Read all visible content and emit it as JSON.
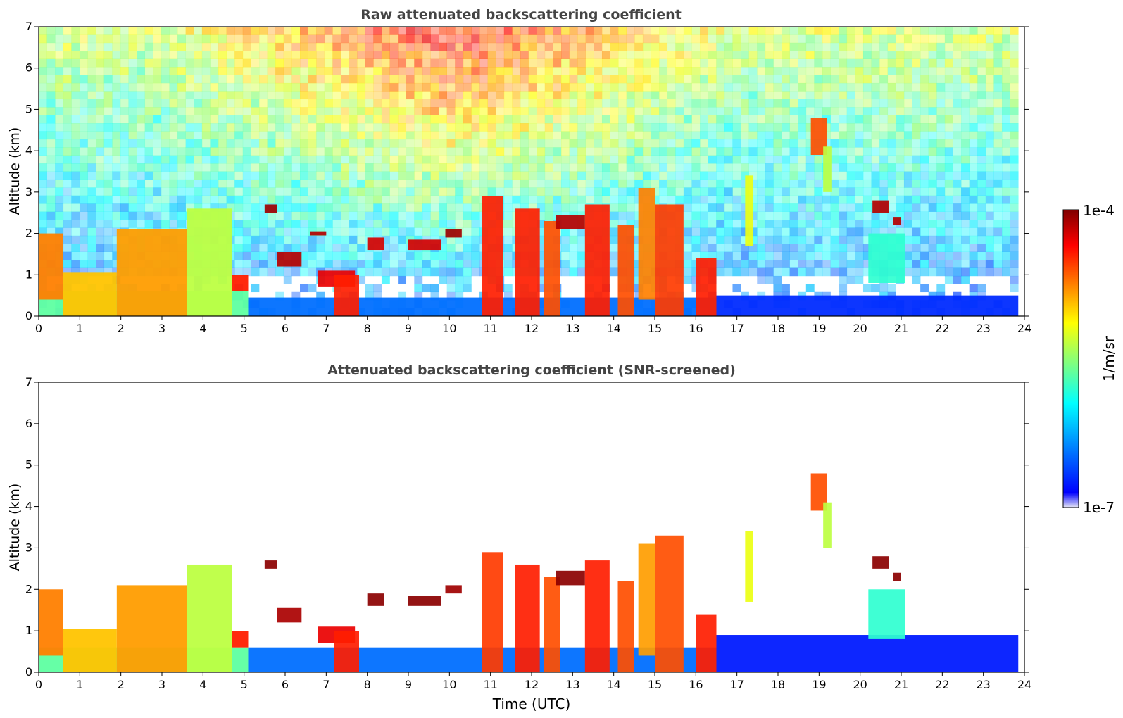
{
  "chart_data": [
    {
      "type": "heatmap",
      "title": "Raw attenuated backscattering coefficient",
      "xlabel": "",
      "ylabel": "Altitude (km)",
      "xlim": [
        0,
        24
      ],
      "ylim": [
        0,
        7
      ],
      "x_ticks": [
        "0",
        "1",
        "2",
        "3",
        "4",
        "5",
        "6",
        "7",
        "8",
        "9",
        "10",
        "11",
        "12",
        "13",
        "14",
        "15",
        "16",
        "17",
        "18",
        "19",
        "20",
        "21",
        "22",
        "23",
        "24"
      ],
      "y_ticks": [
        "0",
        "1",
        "2",
        "3",
        "4",
        "5",
        "6",
        "7"
      ],
      "data_end_time": 23.85,
      "features": [
        {
          "kind": "boundary_layer",
          "t0": 0.0,
          "t1": 5.1,
          "top": 0.6,
          "value": 0.45
        },
        {
          "kind": "boundary_layer",
          "t0": 5.1,
          "t1": 16.5,
          "top": 0.45,
          "value": 0.18
        },
        {
          "kind": "boundary_layer",
          "t0": 16.5,
          "t1": 23.85,
          "top": 0.5,
          "value": 0.1
        },
        {
          "kind": "aerosol_layer",
          "t0": 0.0,
          "t1": 0.6,
          "bottom": 0.4,
          "top": 2.0,
          "value": 0.75
        },
        {
          "kind": "aerosol_layer",
          "t0": 0.6,
          "t1": 1.9,
          "bottom": 0.0,
          "top": 1.05,
          "value": 0.68
        },
        {
          "kind": "aerosol_layer",
          "t0": 1.9,
          "t1": 3.6,
          "bottom": 0.0,
          "top": 2.1,
          "value": 0.72
        },
        {
          "kind": "aerosol_layer",
          "t0": 3.6,
          "t1": 4.7,
          "bottom": 0.0,
          "top": 2.6,
          "value": 0.55
        },
        {
          "kind": "aerosol_layer",
          "t0": 4.7,
          "t1": 5.1,
          "bottom": 0.6,
          "top": 1.0,
          "value": 0.85
        },
        {
          "kind": "cloud",
          "t0": 5.5,
          "t1": 5.8,
          "bottom": 2.5,
          "top": 2.7,
          "value": 0.97
        },
        {
          "kind": "cloud",
          "t0": 5.8,
          "t1": 6.4,
          "bottom": 1.2,
          "top": 1.55,
          "value": 0.95
        },
        {
          "kind": "cloud",
          "t0": 6.6,
          "t1": 7.0,
          "bottom": 1.95,
          "top": 2.05,
          "value": 0.95
        },
        {
          "kind": "cloud",
          "t0": 6.8,
          "t1": 7.7,
          "bottom": 0.7,
          "top": 1.1,
          "value": 0.9
        },
        {
          "kind": "cloud",
          "t0": 7.2,
          "t1": 7.8,
          "bottom": 0.0,
          "top": 1.0,
          "value": 0.85
        },
        {
          "kind": "cloud",
          "t0": 8.0,
          "t1": 8.4,
          "bottom": 1.6,
          "top": 1.9,
          "value": 0.92
        },
        {
          "kind": "cloud",
          "t0": 9.0,
          "t1": 9.8,
          "bottom": 1.6,
          "top": 1.85,
          "value": 0.92
        },
        {
          "kind": "cloud",
          "t0": 9.9,
          "t1": 10.3,
          "bottom": 1.9,
          "top": 2.1,
          "value": 0.97
        },
        {
          "kind": "cloud",
          "t0": 10.8,
          "t1": 11.3,
          "bottom": 0.0,
          "top": 2.9,
          "value": 0.85
        },
        {
          "kind": "cloud",
          "t0": 11.6,
          "t1": 12.2,
          "bottom": 0.0,
          "top": 2.6,
          "value": 0.85
        },
        {
          "kind": "cloud",
          "t0": 12.3,
          "t1": 12.7,
          "bottom": 0.0,
          "top": 2.3,
          "value": 0.8
        },
        {
          "kind": "cloud",
          "t0": 12.6,
          "t1": 13.3,
          "bottom": 2.1,
          "top": 2.45,
          "value": 0.95
        },
        {
          "kind": "cloud",
          "t0": 13.3,
          "t1": 13.9,
          "bottom": 0.0,
          "top": 2.7,
          "value": 0.85
        },
        {
          "kind": "cloud",
          "t0": 14.1,
          "t1": 14.5,
          "bottom": 0.0,
          "top": 2.2,
          "value": 0.8
        },
        {
          "kind": "cloud",
          "t0": 14.6,
          "t1": 15.0,
          "bottom": 0.4,
          "top": 3.1,
          "value": 0.75
        },
        {
          "kind": "cloud",
          "t0": 15.0,
          "t1": 15.7,
          "bottom": 0.0,
          "top": 2.7,
          "value": 0.82
        },
        {
          "kind": "cloud",
          "t0": 16.0,
          "t1": 16.5,
          "bottom": 0.0,
          "top": 1.4,
          "value": 0.85
        },
        {
          "kind": "cloud",
          "t0": 17.2,
          "t1": 17.4,
          "bottom": 1.7,
          "top": 3.4,
          "value": 0.6
        },
        {
          "kind": "cloud",
          "t0": 18.8,
          "t1": 19.2,
          "bottom": 3.9,
          "top": 4.8,
          "value": 0.8
        },
        {
          "kind": "cloud",
          "t0": 19.1,
          "t1": 19.3,
          "bottom": 3.0,
          "top": 4.1,
          "value": 0.55
        },
        {
          "kind": "cloud",
          "t0": 20.2,
          "t1": 21.1,
          "bottom": 0.8,
          "top": 2.0,
          "value": 0.4
        },
        {
          "kind": "cloud",
          "t0": 20.3,
          "t1": 20.7,
          "bottom": 2.5,
          "top": 2.8,
          "value": 0.95
        },
        {
          "kind": "cloud",
          "t0": 20.8,
          "t1": 21.0,
          "bottom": 2.2,
          "top": 2.4,
          "value": 0.95
        }
      ]
    },
    {
      "type": "heatmap",
      "title": "Attenuated backscattering coefficient (SNR-screened)",
      "xlabel": "Time (UTC)",
      "ylabel": "Altitude (km)",
      "xlim": [
        0,
        24
      ],
      "ylim": [
        0,
        7
      ],
      "x_ticks": [
        "0",
        "1",
        "2",
        "3",
        "4",
        "5",
        "6",
        "7",
        "8",
        "9",
        "10",
        "11",
        "12",
        "13",
        "14",
        "15",
        "16",
        "17",
        "18",
        "19",
        "20",
        "21",
        "22",
        "23",
        "24"
      ],
      "y_ticks": [
        "0",
        "1",
        "2",
        "3",
        "4",
        "5",
        "6",
        "7"
      ],
      "data_end_time": 23.85,
      "features": [
        {
          "kind": "boundary_layer",
          "t0": 0.0,
          "t1": 5.1,
          "top": 0.6,
          "value": 0.45
        },
        {
          "kind": "boundary_layer",
          "t0": 5.1,
          "t1": 16.5,
          "top": 0.6,
          "value": 0.18
        },
        {
          "kind": "boundary_layer",
          "t0": 16.5,
          "t1": 23.85,
          "top": 0.9,
          "value": 0.08
        },
        {
          "kind": "aerosol_layer",
          "t0": 0.0,
          "t1": 0.6,
          "bottom": 0.4,
          "top": 2.0,
          "value": 0.75
        },
        {
          "kind": "aerosol_layer",
          "t0": 0.6,
          "t1": 1.9,
          "bottom": 0.0,
          "top": 1.05,
          "value": 0.68
        },
        {
          "kind": "aerosol_layer",
          "t0": 1.9,
          "t1": 3.6,
          "bottom": 0.0,
          "top": 2.1,
          "value": 0.72
        },
        {
          "kind": "aerosol_layer",
          "t0": 3.6,
          "t1": 4.7,
          "bottom": 0.0,
          "top": 2.6,
          "value": 0.55
        },
        {
          "kind": "aerosol_layer",
          "t0": 4.7,
          "t1": 5.1,
          "bottom": 0.6,
          "top": 1.0,
          "value": 0.85
        },
        {
          "kind": "cloud",
          "t0": 5.5,
          "t1": 5.8,
          "bottom": 2.5,
          "top": 2.7,
          "value": 0.99
        },
        {
          "kind": "cloud",
          "t0": 5.8,
          "t1": 6.4,
          "bottom": 1.2,
          "top": 1.55,
          "value": 0.96
        },
        {
          "kind": "cloud",
          "t0": 6.8,
          "t1": 7.7,
          "bottom": 0.7,
          "top": 1.1,
          "value": 0.9
        },
        {
          "kind": "cloud",
          "t0": 7.2,
          "t1": 7.8,
          "bottom": 0.0,
          "top": 1.0,
          "value": 0.85
        },
        {
          "kind": "cloud",
          "t0": 8.0,
          "t1": 8.4,
          "bottom": 1.6,
          "top": 1.9,
          "value": 0.99
        },
        {
          "kind": "cloud",
          "t0": 9.0,
          "t1": 9.8,
          "bottom": 1.6,
          "top": 1.85,
          "value": 0.99
        },
        {
          "kind": "cloud",
          "t0": 9.9,
          "t1": 10.3,
          "bottom": 1.9,
          "top": 2.1,
          "value": 0.97
        },
        {
          "kind": "cloud",
          "t0": 10.8,
          "t1": 11.3,
          "bottom": 0.0,
          "top": 2.9,
          "value": 0.82
        },
        {
          "kind": "cloud",
          "t0": 11.6,
          "t1": 12.2,
          "bottom": 0.0,
          "top": 2.6,
          "value": 0.85
        },
        {
          "kind": "cloud",
          "t0": 12.3,
          "t1": 12.7,
          "bottom": 0.0,
          "top": 2.3,
          "value": 0.8
        },
        {
          "kind": "cloud",
          "t0": 12.6,
          "t1": 13.3,
          "bottom": 2.1,
          "top": 2.45,
          "value": 0.99
        },
        {
          "kind": "cloud",
          "t0": 13.3,
          "t1": 13.9,
          "bottom": 0.0,
          "top": 2.7,
          "value": 0.85
        },
        {
          "kind": "cloud",
          "t0": 14.1,
          "t1": 14.5,
          "bottom": 0.0,
          "top": 2.2,
          "value": 0.8
        },
        {
          "kind": "cloud",
          "t0": 14.6,
          "t1": 15.0,
          "bottom": 0.4,
          "top": 3.1,
          "value": 0.72
        },
        {
          "kind": "cloud",
          "t0": 15.0,
          "t1": 15.7,
          "bottom": 0.0,
          "top": 3.3,
          "value": 0.8
        },
        {
          "kind": "cloud",
          "t0": 16.0,
          "t1": 16.5,
          "bottom": 0.0,
          "top": 1.4,
          "value": 0.85
        },
        {
          "kind": "cloud",
          "t0": 17.2,
          "t1": 17.4,
          "bottom": 1.7,
          "top": 3.4,
          "value": 0.6
        },
        {
          "kind": "cloud",
          "t0": 18.8,
          "t1": 19.2,
          "bottom": 3.9,
          "top": 4.8,
          "value": 0.8
        },
        {
          "kind": "cloud",
          "t0": 19.1,
          "t1": 19.3,
          "bottom": 3.0,
          "top": 4.1,
          "value": 0.55
        },
        {
          "kind": "cloud",
          "t0": 20.2,
          "t1": 21.1,
          "bottom": 0.8,
          "top": 2.0,
          "value": 0.4
        },
        {
          "kind": "cloud",
          "t0": 20.3,
          "t1": 20.7,
          "bottom": 2.5,
          "top": 2.8,
          "value": 0.99
        },
        {
          "kind": "cloud",
          "t0": 20.8,
          "t1": 21.0,
          "bottom": 2.2,
          "top": 2.4,
          "value": 0.99
        }
      ]
    }
  ],
  "colorbar": {
    "label": "1/m/sr",
    "max_label": "1e-4",
    "min_label": "1e-7",
    "colormap": "jet",
    "colors": [
      "#e6e6f5",
      "#0000ff",
      "#00ffff",
      "#ffff00",
      "#ff0000",
      "#800000"
    ]
  }
}
